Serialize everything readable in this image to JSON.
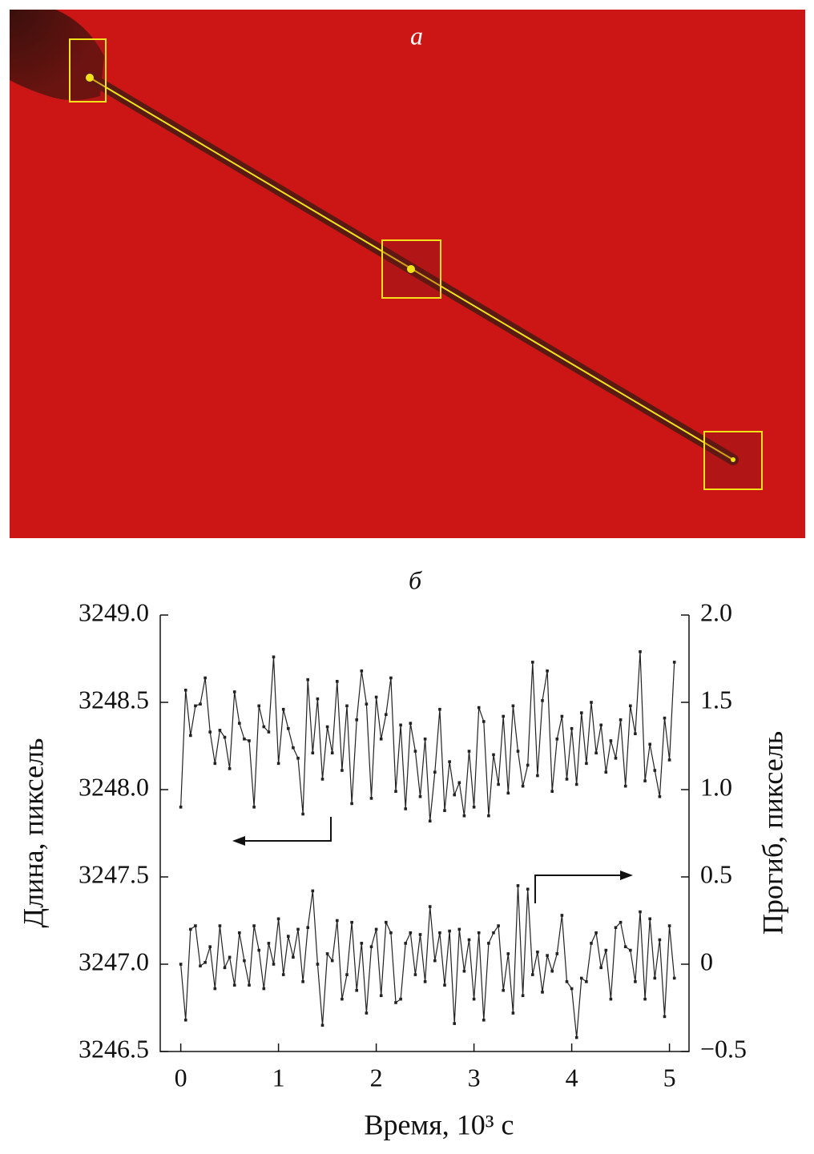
{
  "panel_a_label": "a",
  "chart_data": {
    "type": "line",
    "title": "б",
    "x_label": "Время, 10³ с",
    "y_label": "Длина, пиксель",
    "y2_label": "Прогиб, пиксель",
    "xlim": [
      -0.21,
      5.2
    ],
    "xticks": [
      0,
      1,
      2,
      3,
      4,
      5
    ],
    "ylim": [
      3246.5,
      3249.0
    ],
    "yticks": [
      {
        "value": 3246.5,
        "label": "3246.5"
      },
      {
        "value": 3247,
        "label": "3247.0"
      },
      {
        "value": 3247.5,
        "label": "3247.5"
      },
      {
        "value": 3248,
        "label": "3248.0"
      },
      {
        "value": 3248.5,
        "label": "3248.5"
      },
      {
        "value": 3249,
        "label": "3249.0"
      }
    ],
    "y2lim": [
      -0.5,
      2.0
    ],
    "y2ticks": [
      {
        "value": -0.5,
        "label": "−0.5"
      },
      0,
      0.5,
      {
        "value": 1,
        "label": "1.0"
      },
      1.5,
      {
        "value": 2,
        "label": "2.0"
      }
    ],
    "x": [
      0,
      0.05,
      0.1,
      0.15,
      0.2,
      0.25,
      0.3,
      0.35,
      0.4,
      0.45,
      0.5,
      0.55,
      0.6,
      0.65,
      0.7,
      0.75,
      0.8,
      0.85,
      0.9,
      0.95,
      1,
      1.05,
      1.1,
      1.15,
      1.2,
      1.25,
      1.3,
      1.35,
      1.4,
      1.45,
      1.5,
      1.55,
      1.6,
      1.65,
      1.7,
      1.75,
      1.8,
      1.85,
      1.9,
      1.95,
      2,
      2.05,
      2.1,
      2.15,
      2.2,
      2.25,
      2.3,
      2.35,
      2.4,
      2.45,
      2.5,
      2.55,
      2.6,
      2.65,
      2.7,
      2.75,
      2.8,
      2.85,
      2.9,
      2.95,
      3,
      3.05,
      3.1,
      3.15,
      3.2,
      3.25,
      3.3,
      3.35,
      3.4,
      3.45,
      3.5,
      3.55,
      3.6,
      3.65,
      3.7,
      3.75,
      3.8,
      3.85,
      3.9,
      3.95,
      4,
      4.05,
      4.1,
      4.15,
      4.2,
      4.25,
      4.3,
      4.35,
      4.4,
      4.45,
      4.5,
      4.55,
      4.6,
      4.65,
      4.7,
      4.75,
      4.8,
      4.85,
      4.9,
      4.95,
      5,
      5.05
    ],
    "series": [
      {
        "color": "#222222",
        "axis": "y",
        "values": [
          3247.9,
          3248.57,
          3248.31,
          3248.48,
          3248.49,
          3248.64,
          3248.33,
          3248.15,
          3248.34,
          3248.3,
          3248.12,
          3248.56,
          3248.38,
          3248.29,
          3248.28,
          3247.9,
          3248.48,
          3248.36,
          3248.33,
          3248.76,
          3248.15,
          3248.46,
          3248.35,
          3248.24,
          3248.18,
          3247.86,
          3248.63,
          3248.21,
          3248.52,
          3248.06,
          3248.36,
          3248.21,
          3248.62,
          3248.11,
          3248.48,
          3247.92,
          3248.4,
          3248.68,
          3248.49,
          3247.95,
          3248.53,
          3248.29,
          3248.43,
          3248.64,
          3247.99,
          3248.37,
          3247.89,
          3248.38,
          3248.22,
          3247.96,
          3248.29,
          3247.82,
          3248.1,
          3248.46,
          3247.88,
          3248.16,
          3247.97,
          3248.04,
          3247.85,
          3248.22,
          3247.9,
          3248.47,
          3248.39,
          3247.85,
          3248.2,
          3248.03,
          3248.42,
          3247.98,
          3248.48,
          3248.22,
          3248.02,
          3248.14,
          3248.73,
          3248.08,
          3248.51,
          3248.68,
          3247.99,
          3248.29,
          3248.42,
          3248.06,
          3248.35,
          3248.03,
          3248.44,
          3248.15,
          3248.5,
          3248.21,
          3248.37,
          3248.1,
          3248.28,
          3248.18,
          3248.4,
          3248.02,
          3248.48,
          3248.32,
          3248.79,
          3248.05,
          3248.26,
          3248.11,
          3247.96,
          3248.41,
          3248.17,
          3248.73
        ]
      },
      {
        "color": "#222222",
        "axis": "y2",
        "values": [
          0.0,
          -0.32,
          0.2,
          0.22,
          -0.01,
          0.01,
          0.1,
          -0.14,
          0.22,
          -0.02,
          0.04,
          -0.12,
          0.18,
          0.02,
          -0.12,
          0.22,
          0.08,
          -0.14,
          0.12,
          0.0,
          0.26,
          -0.06,
          0.16,
          0.04,
          0.2,
          -0.1,
          0.21,
          0.42,
          0.0,
          -0.35,
          0.06,
          0.02,
          0.25,
          -0.2,
          -0.06,
          0.24,
          -0.15,
          0.12,
          -0.28,
          0.1,
          0.2,
          -0.18,
          0.24,
          0.18,
          -0.22,
          -0.2,
          0.12,
          0.18,
          -0.06,
          0.17,
          -0.1,
          0.33,
          0.02,
          0.18,
          -0.12,
          0.19,
          -0.34,
          0.2,
          -0.04,
          0.14,
          -0.2,
          0.18,
          -0.32,
          0.12,
          0.18,
          0.22,
          -0.15,
          0.06,
          -0.28,
          0.45,
          -0.18,
          0.43,
          -0.06,
          0.07,
          -0.16,
          0.05,
          -0.04,
          0.06,
          0.28,
          -0.1,
          -0.14,
          -0.42,
          -0.08,
          -0.1,
          0.12,
          0.18,
          -0.02,
          0.08,
          -0.2,
          0.21,
          0.24,
          0.1,
          0.08,
          -0.1,
          0.3,
          -0.2,
          0.26,
          -0.08,
          0.14,
          -0.3,
          0.22,
          -0.08
        ]
      }
    ]
  }
}
